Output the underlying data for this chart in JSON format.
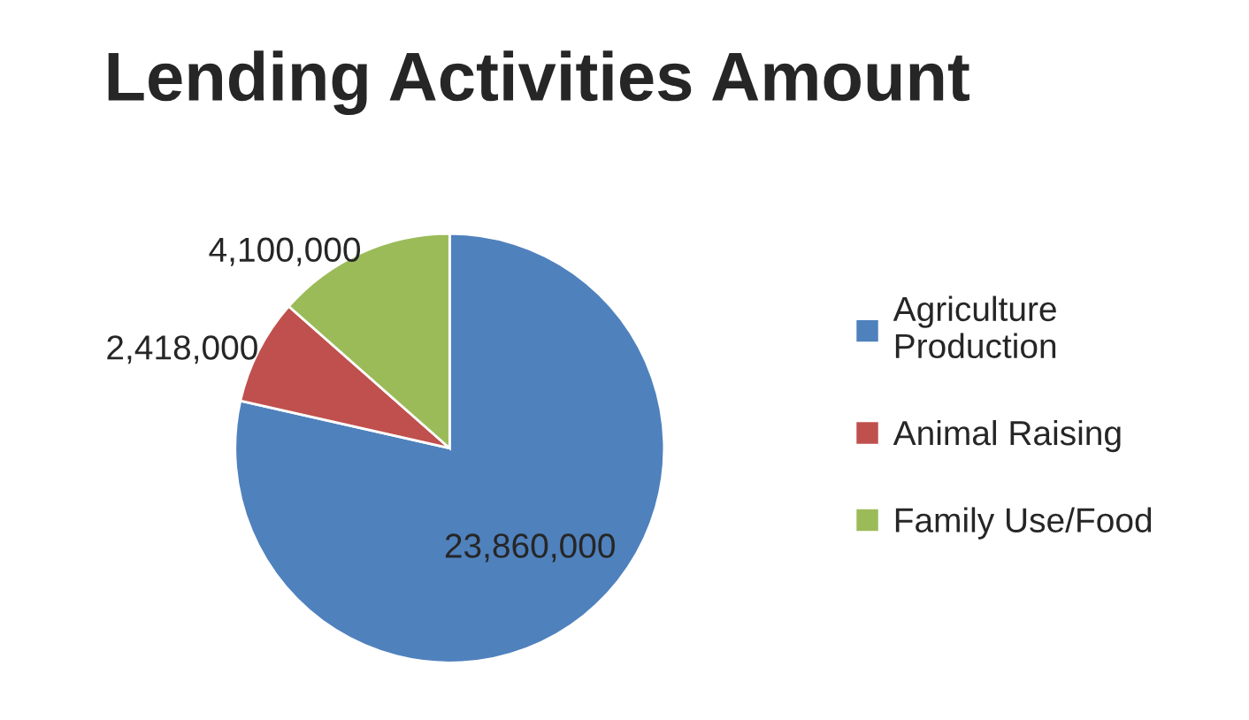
{
  "chart_data": {
    "type": "pie",
    "title": "Lending Activities Amount",
    "categories": [
      "Agriculture Production",
      "Animal Raising",
      "Family Use/Food"
    ],
    "values": [
      23860000,
      2418000,
      4100000
    ],
    "value_labels": [
      "23,860,000",
      "2,418,000",
      "4,100,000"
    ],
    "colors": [
      "#4f81bd",
      "#c0504d",
      "#9bbb59"
    ],
    "legend": "right"
  }
}
